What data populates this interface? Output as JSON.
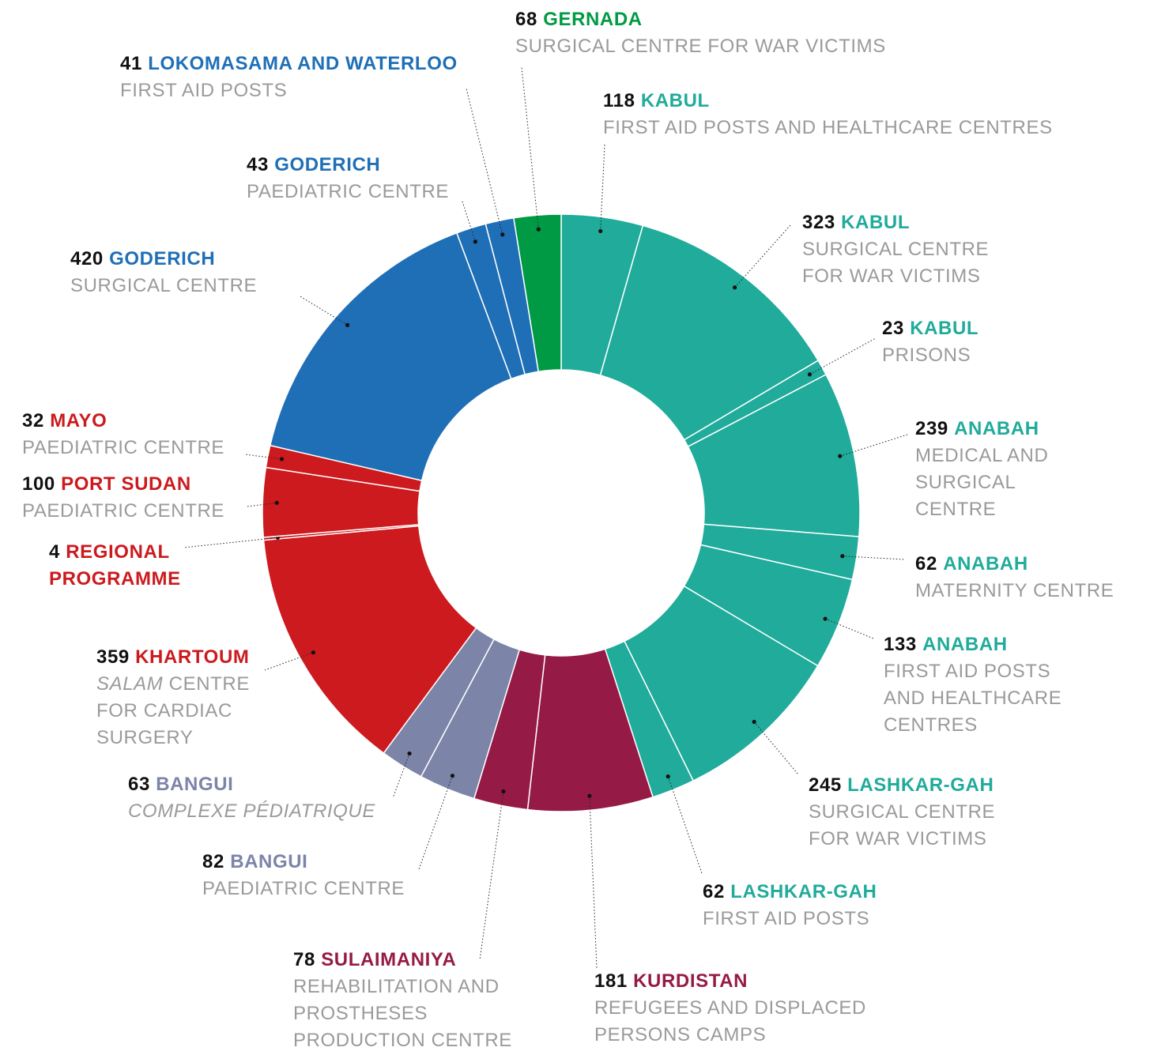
{
  "chart_data": {
    "type": "donut",
    "categories": [
      "KABUL",
      "KABUL",
      "KABUL",
      "ANABAH",
      "ANABAH",
      "ANABAH",
      "LASHKAR-GAH",
      "LASHKAR-GAH",
      "KURDISTAN",
      "SULAIMANIYA",
      "BANGUI",
      "BANGUI",
      "KHARTOUM",
      "REGIONAL PROGRAMME",
      "PORT SUDAN",
      "MAYO",
      "GODERICH",
      "GODERICH",
      "LOKOMASAMA AND WATERLOO",
      "GERNADA"
    ],
    "descriptions": [
      "FIRST AID POSTS AND HEALTHCARE CENTRES",
      "SURGICAL CENTRE FOR WAR VICTIMS",
      "PRISONS",
      "MEDICAL AND SURGICAL CENTRE",
      "MATERNITY CENTRE",
      "FIRST AID POSTS AND HEALTHCARE CENTRES",
      "SURGICAL CENTRE FOR WAR VICTIMS",
      "FIRST AID POSTS",
      "REFUGEES AND DISPLACED PERSONS CAMPS",
      "REHABILITATION AND PROSTHESES PRODUCTION CENTRE",
      "PAEDIATRIC CENTRE",
      {
        "italic": "COMPLEXE PÉDIATRIQUE"
      },
      {
        "italic": "SALAM",
        "text": "CENTRE FOR CARDIAC SURGERY"
      },
      null,
      "PAEDIATRIC CENTRE",
      "PAEDIATRIC CENTRE",
      "SURGICAL CENTRE",
      "PAEDIATRIC CENTRE",
      "FIRST AID POSTS",
      "SURGICAL CENTRE FOR WAR VICTIMS"
    ],
    "values": [
      118,
      323,
      23,
      239,
      62,
      133,
      245,
      62,
      181,
      78,
      82,
      63,
      359,
      4,
      100,
      32,
      420,
      43,
      41,
      68
    ],
    "colors": [
      "#20ab9b",
      "#20ab9b",
      "#20ab9b",
      "#20ab9b",
      "#20ab9b",
      "#20ab9b",
      "#20ab9b",
      "#20ab9b",
      "#961a46",
      "#961a46",
      "#7c84a8",
      "#7c84a8",
      "#cc1a1e",
      "#cc1a1e",
      "#cc1a1e",
      "#cc1a1e",
      "#1f6fb7",
      "#1f6fb7",
      "#1f6fb7",
      "#009a44"
    ]
  }
}
